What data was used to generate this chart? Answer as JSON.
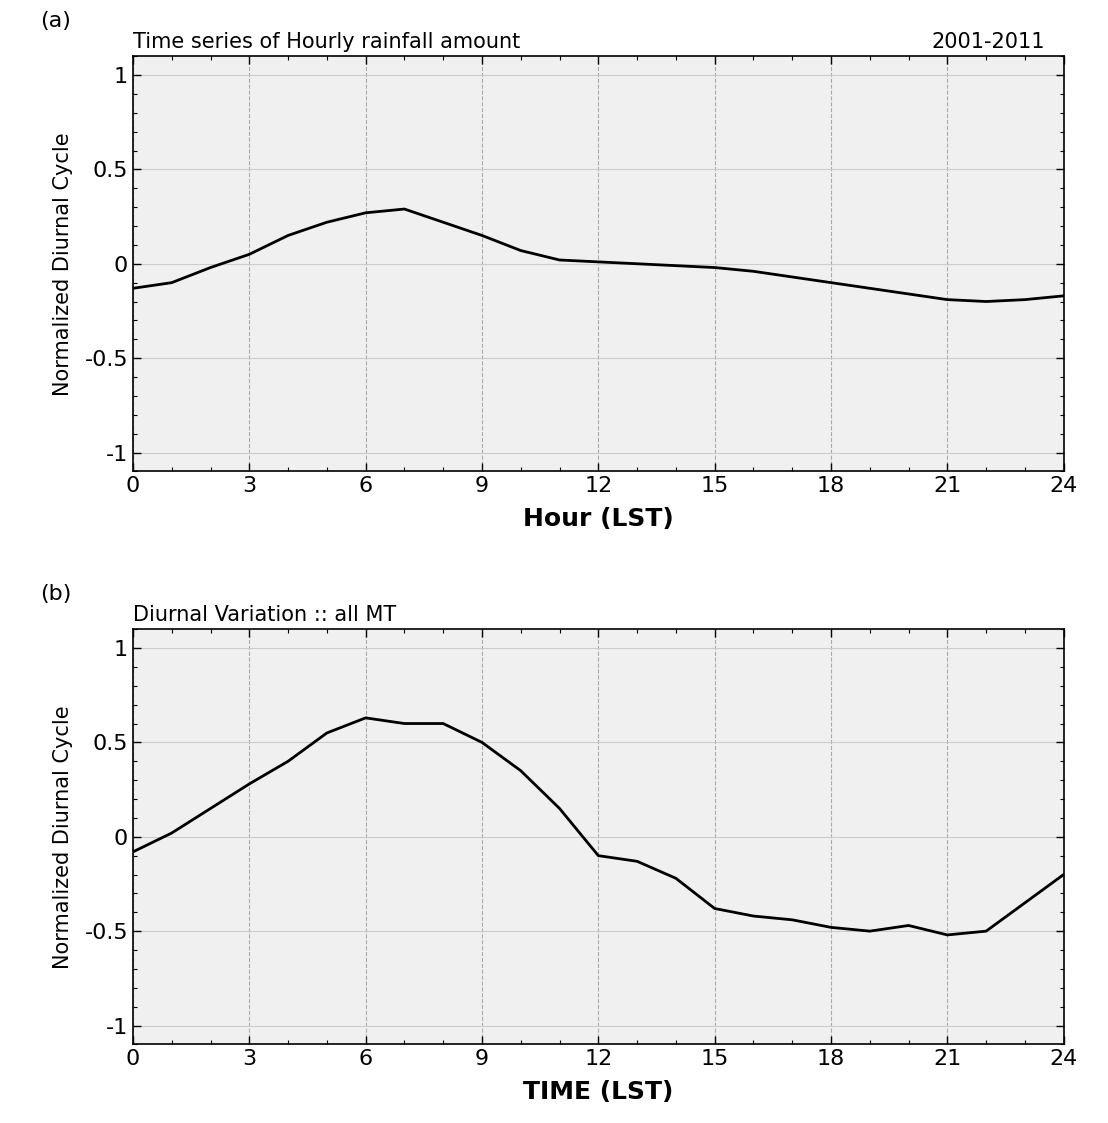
{
  "panel_a": {
    "title": "Time series of Hourly rainfall amount",
    "subtitle": "2001-2011",
    "xlabel": "Hour (LST)",
    "ylabel": "Normalized Diurnal Cycle",
    "label": "(a)",
    "x": [
      0,
      1,
      2,
      3,
      4,
      5,
      6,
      7,
      8,
      9,
      10,
      11,
      12,
      13,
      14,
      15,
      16,
      17,
      18,
      19,
      20,
      21,
      22,
      23,
      24
    ],
    "y": [
      -0.13,
      -0.1,
      -0.02,
      0.05,
      0.15,
      0.22,
      0.27,
      0.29,
      0.22,
      0.15,
      0.07,
      0.02,
      0.01,
      0.0,
      -0.01,
      -0.02,
      -0.04,
      -0.07,
      -0.1,
      -0.13,
      -0.16,
      -0.19,
      -0.2,
      -0.19,
      -0.17
    ]
  },
  "panel_b": {
    "title": "Diurnal Variation :: all MT",
    "xlabel": "TIME (LST)",
    "ylabel": "Normalized Diurnal Cycle",
    "label": "(b)",
    "x": [
      0,
      1,
      2,
      3,
      4,
      5,
      6,
      7,
      8,
      9,
      10,
      11,
      12,
      13,
      14,
      15,
      16,
      17,
      18,
      19,
      20,
      21,
      22,
      23,
      24
    ],
    "y": [
      -0.08,
      0.02,
      0.15,
      0.28,
      0.4,
      0.55,
      0.63,
      0.6,
      0.6,
      0.5,
      0.35,
      0.15,
      -0.1,
      -0.13,
      -0.22,
      -0.38,
      -0.42,
      -0.44,
      -0.48,
      -0.5,
      -0.47,
      -0.52,
      -0.5,
      -0.35,
      -0.2
    ]
  },
  "xlim": [
    0,
    24
  ],
  "ylim": [
    -1.1,
    1.1
  ],
  "xticks": [
    0,
    3,
    6,
    9,
    12,
    15,
    18,
    21,
    24
  ],
  "yticks": [
    -1,
    -0.5,
    0,
    0.5,
    1
  ],
  "line_color": "#000000",
  "line_width": 2.0,
  "grid_color": "#cccccc",
  "bg_color": "#f0f0f0",
  "fig_bg_color": "#ffffff"
}
